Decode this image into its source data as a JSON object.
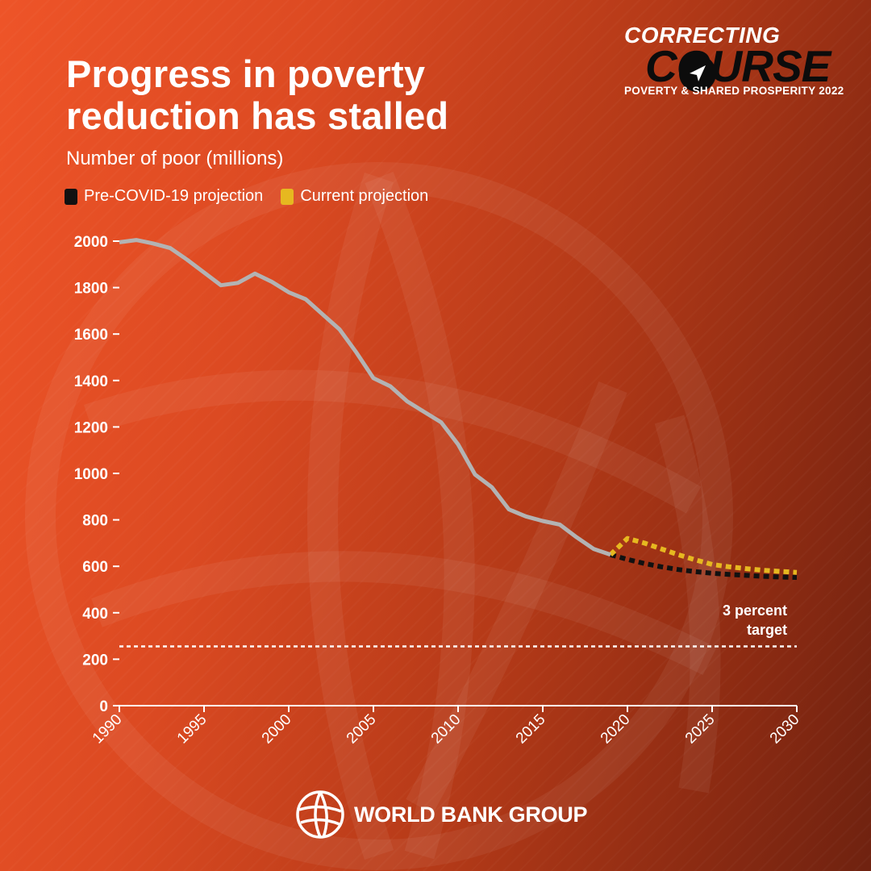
{
  "header": {
    "title": "Progress in poverty reduction has stalled",
    "subtitle": "Number of poor (millions)"
  },
  "brand": {
    "line1": "CORRECTING",
    "line2": "COURSE",
    "line3": "POVERTY & SHARED PROSPERITY 2022",
    "icon": "paper-plane-icon"
  },
  "footer": {
    "org": "WORLD BANK GROUP",
    "icon": "globe-icon"
  },
  "colors": {
    "historical": "#b3b3b3",
    "pre_covid": "#111111",
    "current": "#e6b820",
    "target_line": "#ffffff"
  },
  "legend": [
    {
      "label": "Pre-COVID-19 projection",
      "color": "#111111"
    },
    {
      "label": "Current projection",
      "color": "#e6b820"
    }
  ],
  "chart_data": {
    "type": "line",
    "title": "Progress in poverty reduction has stalled",
    "subtitle": "Number of poor (millions)",
    "xlabel": "",
    "ylabel": "",
    "xlim": [
      1990,
      2030
    ],
    "ylim": [
      0,
      2000
    ],
    "x_ticks": [
      1990,
      1995,
      2000,
      2005,
      2010,
      2015,
      2020,
      2025,
      2030
    ],
    "y_ticks": [
      0,
      200,
      400,
      600,
      800,
      1000,
      1200,
      1400,
      1600,
      1800,
      2000
    ],
    "grid": false,
    "legend_position": "top-left",
    "series": [
      {
        "key": "historical",
        "style": "solid",
        "x": [
          1990,
          1991,
          1992,
          1993,
          1994,
          1995,
          1996,
          1997,
          1998,
          1999,
          2000,
          2001,
          2002,
          2003,
          2004,
          2005,
          2006,
          2007,
          2008,
          2009,
          2010,
          2011,
          2012,
          2013,
          2014,
          2015,
          2016,
          2017,
          2018,
          2019
        ],
        "y": [
          1995,
          2005,
          1990,
          1970,
          1920,
          1865,
          1810,
          1820,
          1860,
          1825,
          1780,
          1750,
          1685,
          1620,
          1520,
          1410,
          1375,
          1310,
          1265,
          1220,
          1125,
          995,
          940,
          845,
          815,
          795,
          780,
          725,
          675,
          650
        ]
      },
      {
        "name": "Pre-COVID-19 projection",
        "style": "dotted",
        "x": [
          2019,
          2020,
          2021,
          2022,
          2023,
          2024,
          2025,
          2026,
          2027,
          2028,
          2029,
          2030
        ],
        "y": [
          650,
          630,
          612,
          598,
          586,
          577,
          570,
          565,
          561,
          557,
          554,
          552
        ]
      },
      {
        "name": "Current projection",
        "style": "dotted",
        "x": [
          2019,
          2020,
          2021,
          2022,
          2023,
          2024,
          2025,
          2026,
          2027,
          2028,
          2029,
          2030
        ],
        "y": [
          650,
          720,
          700,
          675,
          650,
          628,
          608,
          598,
          590,
          583,
          578,
          574
        ]
      }
    ],
    "annotations": [
      {
        "type": "hline",
        "y": 255,
        "style": "dashed",
        "label": "3 percent target"
      }
    ]
  }
}
